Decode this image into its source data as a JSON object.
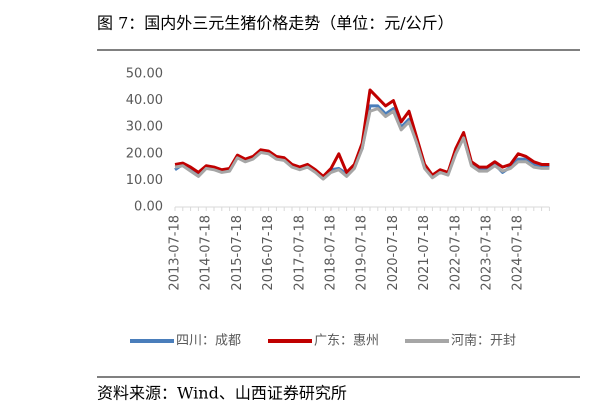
{
  "chart_data": {
    "type": "line",
    "title": "图 7：国内外三元生猪价格走势（单位：元/公斤）",
    "source": "资料来源：Wind、山西证券研究所",
    "categories": [
      "2013-07-18",
      null,
      null,
      null,
      "2014-07-18",
      null,
      null,
      null,
      "2015-07-18",
      null,
      null,
      null,
      "2016-07-18",
      null,
      null,
      null,
      "2017-07-18",
      null,
      null,
      null,
      "2018-07-18",
      null,
      null,
      null,
      "2019-07-18",
      null,
      null,
      null,
      "2020-07-18",
      null,
      null,
      null,
      "2021-07-18",
      null,
      null,
      null,
      "2022-07-18",
      null,
      null,
      null,
      "2023-07-18",
      null,
      null,
      null,
      "2024-07-18",
      null,
      null,
      null,
      null
    ],
    "series": [
      {
        "name": "四川：成都",
        "color": "#4a7ebb",
        "values": [
          14,
          16,
          14.5,
          12.5,
          15,
          14.5,
          13.5,
          14,
          19,
          17.5,
          18.5,
          21,
          20.5,
          18.5,
          18,
          15.5,
          14.5,
          15.5,
          13.5,
          11,
          14,
          14.5,
          12.5,
          15.5,
          22,
          38,
          38,
          35,
          37,
          30,
          33,
          24,
          15,
          11.5,
          13.5,
          12.5,
          21,
          26,
          16,
          14,
          14,
          16,
          13,
          15,
          18,
          18,
          16,
          15,
          15
        ]
      },
      {
        "name": "广东：惠州",
        "color": "#c00000",
        "values": [
          16,
          16.5,
          15,
          13,
          15.5,
          15,
          14,
          14.5,
          19.5,
          18,
          19,
          21.5,
          21,
          19,
          18.5,
          16,
          15,
          16,
          14,
          11.5,
          14.5,
          20,
          13,
          16,
          24,
          44,
          41,
          38,
          40,
          32,
          36,
          26,
          16,
          12,
          14,
          13,
          22,
          28,
          17,
          15,
          15,
          17,
          15,
          16,
          20,
          19,
          17,
          16,
          16
        ]
      },
      {
        "name": "河南：开封",
        "color": "#a6a6a6",
        "values": [
          15,
          15.5,
          13.5,
          11.5,
          14.5,
          14,
          13,
          13.5,
          18.5,
          17,
          18,
          20.5,
          20,
          18,
          17.5,
          15,
          14,
          15,
          13,
          10.5,
          13,
          14,
          11.5,
          14.5,
          22,
          36,
          37,
          34,
          36,
          29,
          32,
          24,
          14.5,
          11,
          13,
          12,
          20,
          26,
          15.5,
          13.5,
          13.5,
          15.5,
          13.5,
          14.5,
          17,
          17,
          15,
          14.5,
          14.5
        ]
      }
    ],
    "ylim": [
      0,
      50
    ],
    "yticks": [
      {
        "value": 0,
        "label": "0.00"
      },
      {
        "value": 10,
        "label": "10.00"
      },
      {
        "value": 20,
        "label": "20.00"
      },
      {
        "value": 30,
        "label": "30.00"
      },
      {
        "value": 40,
        "label": "40.00"
      },
      {
        "value": 50,
        "label": "50.00"
      }
    ],
    "legend": "bottom"
  }
}
